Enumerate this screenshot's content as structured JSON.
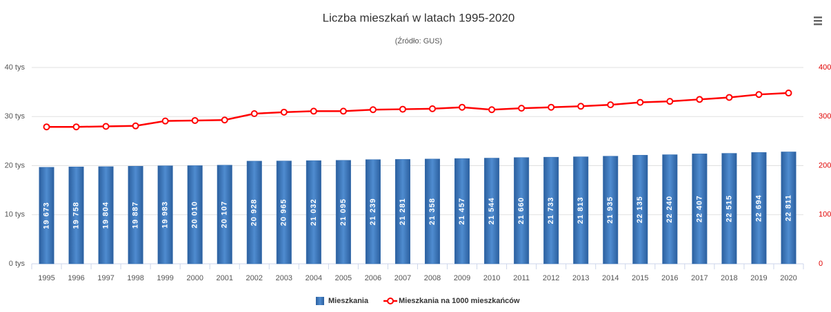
{
  "chart_data": {
    "type": "bar",
    "title": "Liczba mieszkań w latach 1995-2020",
    "subtitle": "(Źródło: GUS)",
    "categories": [
      "1995",
      "1996",
      "1997",
      "1998",
      "1999",
      "2000",
      "2001",
      "2002",
      "2003",
      "2004",
      "2005",
      "2006",
      "2007",
      "2008",
      "2009",
      "2010",
      "2011",
      "2012",
      "2013",
      "2014",
      "2015",
      "2016",
      "2017",
      "2018",
      "2019",
      "2020"
    ],
    "series": [
      {
        "name": "Mieszkania",
        "color": "#3a72b3",
        "type": "bar",
        "values": [
          19673,
          19758,
          19804,
          19887,
          19983,
          20010,
          20107,
          20928,
          20965,
          21032,
          21095,
          21239,
          21281,
          21358,
          21457,
          21544,
          21660,
          21733,
          21813,
          21935,
          22135,
          22240,
          22407,
          22515,
          22694,
          22811
        ],
        "value_labels": [
          "19 673",
          "19 758",
          "19 804",
          "19 887",
          "19 983",
          "20 010",
          "20 107",
          "20 928",
          "20 965",
          "21 032",
          "21 095",
          "21 239",
          "21 281",
          "21 358",
          "21 457",
          "21 544",
          "21 660",
          "21 733",
          "21 813",
          "21 935",
          "22 135",
          "22 240",
          "22 407",
          "22 515",
          "22 694",
          "22 811"
        ]
      },
      {
        "name": "Mieszkania na 1000 mieszkańców",
        "color": "#ff0000",
        "type": "line",
        "axis": "y2",
        "values": [
          279,
          279,
          280,
          281,
          291,
          292,
          293,
          306,
          309,
          311,
          311,
          314,
          315,
          316,
          319,
          314,
          317,
          319,
          321,
          324,
          329,
          331,
          335,
          339,
          345,
          348
        ]
      }
    ],
    "ylim": [
      0,
      40000
    ],
    "yticks": [
      {
        "value": 0,
        "label": "0 tys"
      },
      {
        "value": 10000,
        "label": "10 tys"
      },
      {
        "value": 20000,
        "label": "20 tys"
      },
      {
        "value": 30000,
        "label": "30 tys"
      },
      {
        "value": 40000,
        "label": "40 tys"
      }
    ],
    "y2lim": [
      0,
      400
    ],
    "y2ticks": [
      0,
      100,
      200,
      300,
      400
    ],
    "grid": true
  }
}
